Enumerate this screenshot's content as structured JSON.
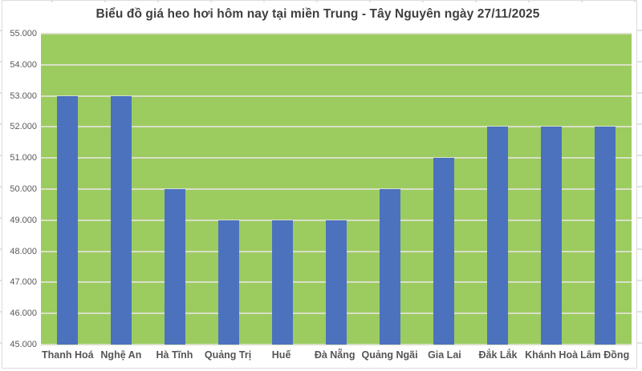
{
  "title": "Biểu đồ giá heo hơi hôm nay tại miền Trung - Tây Nguyên ngày 27/11/2025",
  "colors": {
    "plot_background": "#9CCB60",
    "bar_fill": "#4C72BE",
    "gridline": "#D8E0C6",
    "title_text": "#3F3F3F",
    "axis_text": "#595959",
    "border": "#DCDCDC"
  },
  "chart_data": {
    "type": "bar",
    "title": "Biểu đồ giá heo hơi hôm nay tại miền Trung - Tây Nguyên ngày 27/11/2025",
    "categories": [
      "Thanh Hoá",
      "Nghệ An",
      "Hà Tĩnh",
      "Quảng Trị",
      "Huế",
      "Đà Nẵng",
      "Quảng Ngãi",
      "Gia Lai",
      "Đắk Lắk",
      "Khánh Hoà",
      "Lâm Đồng"
    ],
    "values": [
      53000,
      53000,
      50000,
      49000,
      49000,
      49000,
      50000,
      51000,
      52000,
      52000,
      52000
    ],
    "xlabel": "",
    "ylabel": "",
    "ylim": [
      45000,
      55000
    ],
    "ytick_interval": 1000,
    "ytick_labels": [
      "55.000",
      "54.000",
      "53.000",
      "52.000",
      "51.000",
      "50.000",
      "49.000",
      "48.000",
      "47.000",
      "46.000",
      "45.000"
    ],
    "grid": true,
    "legend_position": "none"
  }
}
